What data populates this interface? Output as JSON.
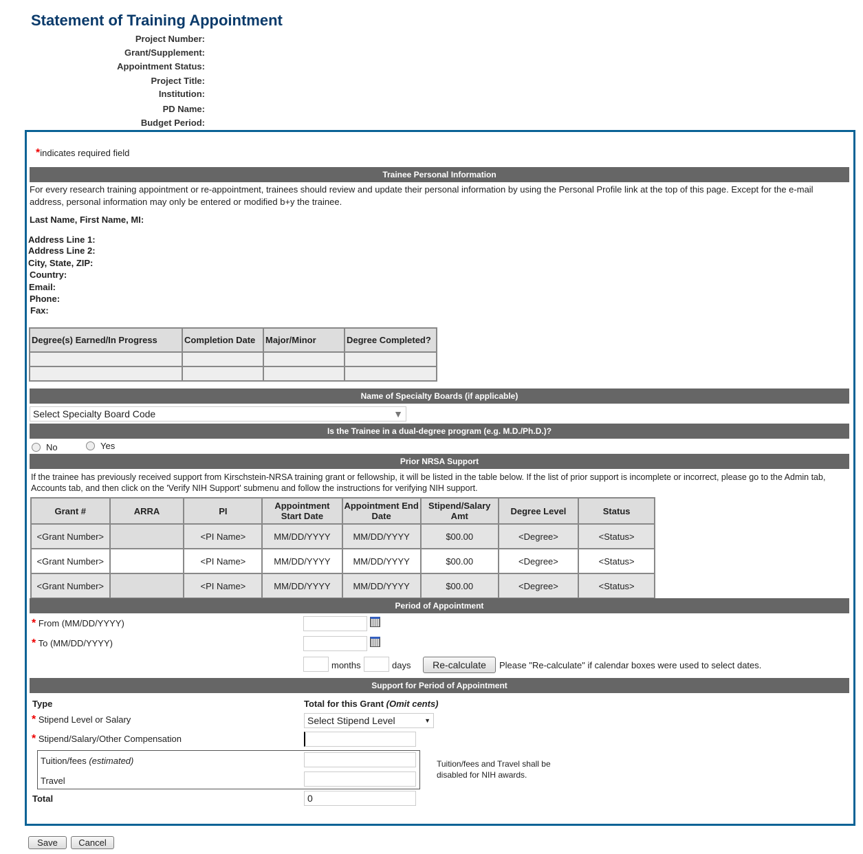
{
  "title": "Statement of Training Appointment",
  "header_fields": [
    "Project Number:",
    "Grant/Supplement:",
    "Appointment Status:",
    "Project Title:",
    "Institution:",
    "PD Name:",
    "Budget Period:"
  ],
  "required_note": "indicates required field",
  "required_mark": "*",
  "personal": {
    "heading": "Trainee Personal Information",
    "intro": "For every research training appointment or re-appointment, trainees should review and update their personal information by using the Personal Profile link at the top of this page. Except for the e-mail address, personal information may only be entered or modified b+y the trainee.",
    "name_label": "Last Name, First Name, MI:",
    "fields": [
      "Address Line 1:",
      "Address Line 2:",
      "City, State, ZIP:",
      "Country:",
      "Email:",
      "Phone:",
      "Fax:"
    ]
  },
  "degrees": {
    "headers": [
      "Degree(s) Earned/In Progress",
      "Completion Date",
      "Major/Minor",
      "Degree Completed?"
    ]
  },
  "specialty": {
    "heading": "Name of Specialty Boards (if applicable)",
    "select_value": "Select Specialty Board Code"
  },
  "dual": {
    "heading": "Is the Trainee in a dual-degree program (e.g. M.D./Ph.D.)?",
    "no": "No",
    "yes": "Yes"
  },
  "nrsa": {
    "heading": "Prior NRSA Support",
    "intro": "If the trainee has previously received support from Kirschstein-NRSA training grant or fellowship, it will be listed in the table below. If the list of prior support is incomplete or incorrect, please go to the Admin tab, Accounts tab, and then click on the 'Verify NIH Support' submenu and follow the instructions for verifying NIH support.",
    "headers": [
      "Grant #",
      "ARRA",
      "PI",
      "Appointment Start Date",
      "Appointment End Date",
      "Stipend/Salary Amt",
      "Degree Level",
      "Status"
    ],
    "rows": [
      [
        "<Grant Number>",
        "",
        "<PI Name>",
        "MM/DD/YYYY",
        "MM/DD/YYYY",
        "$00.00",
        "<Degree>",
        "<Status>"
      ],
      [
        "<Grant Number>",
        "",
        "<PI Name>",
        "MM/DD/YYYY",
        "MM/DD/YYYY",
        "$00.00",
        "<Degree>",
        "<Status>"
      ],
      [
        "<Grant Number>",
        "",
        "<PI Name>",
        "MM/DD/YYYY",
        "MM/DD/YYYY",
        "$00.00",
        "<Degree>",
        "<Status>"
      ]
    ]
  },
  "period": {
    "heading": "Period of Appointment",
    "from": "From (MM/DD/YYYY)",
    "to": "To (MM/DD/YYYY)",
    "months": "months",
    "days": "days",
    "recalc": "Re-calculate",
    "note": "Please \"Re-calculate\" if calendar boxes were used to select dates."
  },
  "support": {
    "heading": "Support for Period of Appointment",
    "type": "Type",
    "total_for": "Total for this Grant ",
    "omit": "(Omit cents)",
    "stipend_level": "Stipend Level or Salary",
    "stipend_select": "Select Stipend Level",
    "compensation": "Stipend/Salary/Other Compensation",
    "tuition": "Tuition/fees ",
    "estimated": "(estimated)",
    "travel": "Travel",
    "note": "Tuition/fees and Travel shall be disabled for NIH awards.",
    "total": "Total",
    "total_value": "0"
  },
  "buttons": {
    "save": "Save",
    "cancel": "Cancel"
  }
}
